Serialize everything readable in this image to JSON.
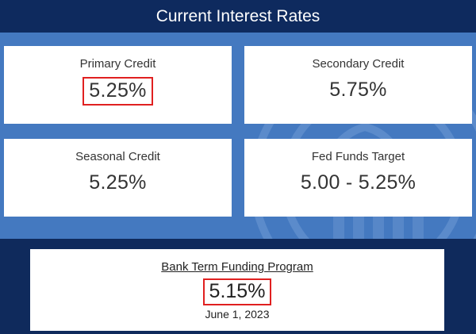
{
  "header": {
    "title": "Current Interest Rates"
  },
  "rates": [
    {
      "label": "Primary Credit",
      "value": "5.25%"
    },
    {
      "label": "Secondary Credit",
      "value": "5.75%"
    },
    {
      "label": "Seasonal Credit",
      "value": "5.25%"
    },
    {
      "label": "Fed Funds Target",
      "value": "5.00 - 5.25%"
    }
  ],
  "btfp": {
    "label": "Bank Term Funding Program",
    "value": "5.15%",
    "date": "June 1, 2023"
  },
  "colors": {
    "header_bg": "#0e2a5e",
    "panel_bg": "#4479c0",
    "footer_bg": "#0f2a5c",
    "highlight": "#e02020"
  }
}
